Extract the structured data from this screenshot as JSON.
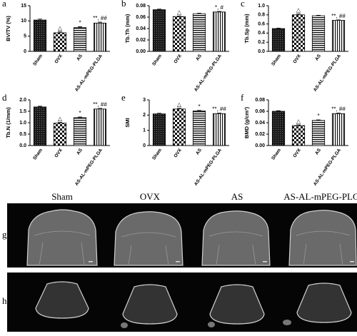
{
  "chart_data": [
    {
      "type": "bar",
      "panel": "a",
      "ylabel": "BV/TV (%)",
      "categories": [
        "Sham",
        "OVX",
        "AS",
        "AS-AL-mPEG-PLGA"
      ],
      "values": [
        10.3,
        6.1,
        7.8,
        9.3
      ],
      "errors": [
        0.3,
        0.3,
        0.3,
        0.3
      ],
      "annotations": [
        null,
        "△",
        "*",
        "**, ##"
      ],
      "ylim": [
        0,
        15
      ],
      "yticks": [
        0,
        5,
        10,
        15
      ]
    },
    {
      "type": "bar",
      "panel": "b",
      "ylabel": "Tb.Th (mm)",
      "categories": [
        "Sham",
        "OVX",
        "AS",
        "AS-AL-mPEG-PLGA"
      ],
      "values": [
        0.073,
        0.061,
        0.066,
        0.069
      ],
      "errors": [
        0.001,
        0.001,
        0.001,
        0.001
      ],
      "annotations": [
        null,
        "△",
        null,
        "*, #"
      ],
      "ylim": [
        0,
        0.08
      ],
      "yticks": [
        {
          "value": 0,
          "label": "0.00"
        },
        {
          "value": 0.02,
          "label": "0.02"
        },
        {
          "value": 0.04,
          "label": "0.04"
        },
        {
          "value": 0.06,
          "label": "0.06"
        },
        {
          "value": 0.08,
          "label": "0.08"
        }
      ]
    },
    {
      "type": "bar",
      "panel": "c",
      "ylabel": "Tb.Sp (mm)",
      "categories": [
        "Sham",
        "OVX",
        "AS",
        "AS-AL-mPEG-PLGA"
      ],
      "values": [
        0.5,
        0.8,
        0.78,
        0.68
      ],
      "errors": [
        0.01,
        0.02,
        0.01,
        0.01
      ],
      "annotations": [
        null,
        "△",
        null,
        "**, ##"
      ],
      "ylim": [
        0,
        1.0
      ],
      "yticks": [
        {
          "value": 0,
          "label": "0.0"
        },
        0.2,
        0.4,
        0.6,
        0.8,
        {
          "value": 1.0,
          "label": "1.0"
        }
      ]
    },
    {
      "type": "bar",
      "panel": "d",
      "ylabel": "Tb.N (1/mm)",
      "categories": [
        "Sham",
        "OVX",
        "AS",
        "AS-AL-mPEG-PLGA"
      ],
      "values": [
        1.69,
        0.98,
        1.22,
        1.6
      ],
      "errors": [
        0.03,
        0.03,
        0.03,
        0.03
      ],
      "annotations": [
        null,
        "△",
        "*",
        "**, ##"
      ],
      "ylim": [
        0,
        2.0
      ],
      "yticks": [
        {
          "value": 0,
          "label": "0.0"
        },
        0.5,
        {
          "value": 1.0,
          "label": "1.0"
        },
        1.5,
        {
          "value": 2.0,
          "label": "2.0"
        }
      ]
    },
    {
      "type": "bar",
      "panel": "e",
      "ylabel": "SMI",
      "categories": [
        "Sham",
        "OVX",
        "AS",
        "AS-AL-mPEG-PLGA"
      ],
      "values": [
        2.08,
        2.4,
        2.27,
        2.1
      ],
      "errors": [
        0.04,
        0.05,
        0.04,
        0.04
      ],
      "annotations": [
        null,
        "△",
        "*",
        "**, ##"
      ],
      "ylim": [
        0,
        3
      ],
      "yticks": [
        0,
        1,
        2,
        3
      ]
    },
    {
      "type": "bar",
      "panel": "f",
      "ylabel": "BMD (g/cm³)",
      "categories": [
        "Sham",
        "OVX",
        "AS",
        "AS-AL-mPEG-PLGA"
      ],
      "values": [
        0.06,
        0.035,
        0.044,
        0.056
      ],
      "errors": [
        0.001,
        0.001,
        0.001,
        0.001
      ],
      "annotations": [
        null,
        "△",
        "*",
        "**, ##"
      ],
      "ylim": [
        0,
        0.08
      ],
      "yticks": [
        {
          "value": 0,
          "label": "0.00"
        },
        {
          "value": 0.02,
          "label": "0.02"
        },
        {
          "value": 0.04,
          "label": "0.04"
        },
        {
          "value": 0.06,
          "label": "0.06"
        },
        {
          "value": 0.08,
          "label": "0.08"
        }
      ]
    }
  ],
  "image_panel": {
    "columns": [
      "Sham",
      "OVX",
      "AS",
      "AS-AL-mPEG-PLGA"
    ],
    "rows": [
      "g",
      "h"
    ]
  }
}
